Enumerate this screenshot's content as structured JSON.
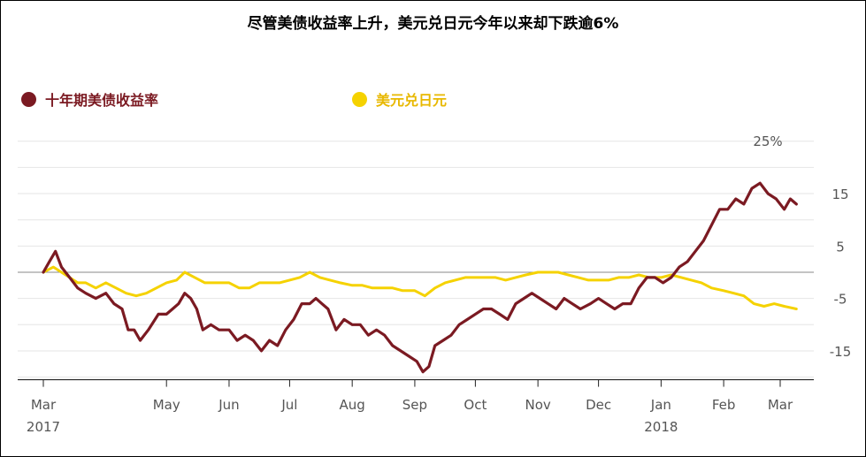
{
  "chart_data": {
    "type": "line",
    "title": "尽管美债收益率上升，美元兑日元今年以来却下跌逾6%",
    "unit_label": "25%",
    "ylim": [
      -20,
      25
    ],
    "y_ticks": [
      15,
      5,
      -5,
      -15
    ],
    "x_ticks": [
      {
        "label": "Mar",
        "year": "2017",
        "date": "2017-03-01"
      },
      {
        "label": "May",
        "year": "",
        "date": "2017-05-01"
      },
      {
        "label": "Jun",
        "year": "",
        "date": "2017-06-01"
      },
      {
        "label": "Jul",
        "year": "",
        "date": "2017-07-01"
      },
      {
        "label": "Aug",
        "year": "",
        "date": "2017-08-01"
      },
      {
        "label": "Sep",
        "year": "",
        "date": "2017-09-01"
      },
      {
        "label": "Oct",
        "year": "",
        "date": "2017-10-01"
      },
      {
        "label": "Nov",
        "year": "",
        "date": "2017-11-01"
      },
      {
        "label": "Dec",
        "year": "",
        "date": "2017-12-01"
      },
      {
        "label": "Jan",
        "year": "2018",
        "date": "2018-01-01"
      },
      {
        "label": "Feb",
        "year": "",
        "date": "2018-02-01"
      },
      {
        "label": "Mar",
        "year": "",
        "date": "2018-03-01"
      }
    ],
    "grid": true,
    "legend_position": "top-left",
    "series": [
      {
        "name": "十年期美债收益率",
        "color": "#7b1a22",
        "points": [
          [
            "2017-03-01",
            0
          ],
          [
            "2017-03-04",
            2
          ],
          [
            "2017-03-07",
            4
          ],
          [
            "2017-03-10",
            1
          ],
          [
            "2017-03-14",
            -1
          ],
          [
            "2017-03-18",
            -3
          ],
          [
            "2017-03-22",
            -4
          ],
          [
            "2017-03-27",
            -5
          ],
          [
            "2017-04-01",
            -4
          ],
          [
            "2017-04-05",
            -6
          ],
          [
            "2017-04-09",
            -7
          ],
          [
            "2017-04-12",
            -11
          ],
          [
            "2017-04-15",
            -11
          ],
          [
            "2017-04-18",
            -13
          ],
          [
            "2017-04-22",
            -11
          ],
          [
            "2017-04-27",
            -8
          ],
          [
            "2017-05-01",
            -8
          ],
          [
            "2017-05-04",
            -7
          ],
          [
            "2017-05-07",
            -6
          ],
          [
            "2017-05-10",
            -4
          ],
          [
            "2017-05-13",
            -5
          ],
          [
            "2017-05-16",
            -7
          ],
          [
            "2017-05-19",
            -11
          ],
          [
            "2017-05-23",
            -10
          ],
          [
            "2017-05-27",
            -11
          ],
          [
            "2017-06-01",
            -11
          ],
          [
            "2017-06-05",
            -13
          ],
          [
            "2017-06-09",
            -12
          ],
          [
            "2017-06-13",
            -13
          ],
          [
            "2017-06-17",
            -15
          ],
          [
            "2017-06-21",
            -13
          ],
          [
            "2017-06-25",
            -14
          ],
          [
            "2017-06-29",
            -11
          ],
          [
            "2017-07-03",
            -9
          ],
          [
            "2017-07-07",
            -6
          ],
          [
            "2017-07-11",
            -6
          ],
          [
            "2017-07-14",
            -5
          ],
          [
            "2017-07-17",
            -6
          ],
          [
            "2017-07-20",
            -7
          ],
          [
            "2017-07-24",
            -11
          ],
          [
            "2017-07-28",
            -9
          ],
          [
            "2017-08-01",
            -10
          ],
          [
            "2017-08-05",
            -10
          ],
          [
            "2017-08-09",
            -12
          ],
          [
            "2017-08-13",
            -11
          ],
          [
            "2017-08-17",
            -12
          ],
          [
            "2017-08-21",
            -14
          ],
          [
            "2017-08-25",
            -15
          ],
          [
            "2017-08-29",
            -16
          ],
          [
            "2017-09-02",
            -17
          ],
          [
            "2017-09-05",
            -19
          ],
          [
            "2017-09-08",
            -18
          ],
          [
            "2017-09-11",
            -14
          ],
          [
            "2017-09-15",
            -13
          ],
          [
            "2017-09-19",
            -12
          ],
          [
            "2017-09-23",
            -10
          ],
          [
            "2017-09-27",
            -9
          ],
          [
            "2017-10-01",
            -8
          ],
          [
            "2017-10-05",
            -7
          ],
          [
            "2017-10-09",
            -7
          ],
          [
            "2017-10-13",
            -8
          ],
          [
            "2017-10-17",
            -9
          ],
          [
            "2017-10-21",
            -6
          ],
          [
            "2017-10-25",
            -5
          ],
          [
            "2017-10-29",
            -4
          ],
          [
            "2017-11-02",
            -5
          ],
          [
            "2017-11-06",
            -6
          ],
          [
            "2017-11-10",
            -7
          ],
          [
            "2017-11-14",
            -5
          ],
          [
            "2017-11-18",
            -6
          ],
          [
            "2017-11-22",
            -7
          ],
          [
            "2017-11-27",
            -6
          ],
          [
            "2017-12-01",
            -5
          ],
          [
            "2017-12-05",
            -6
          ],
          [
            "2017-12-09",
            -7
          ],
          [
            "2017-12-13",
            -6
          ],
          [
            "2017-12-17",
            -6
          ],
          [
            "2017-12-21",
            -3
          ],
          [
            "2017-12-25",
            -1
          ],
          [
            "2017-12-29",
            -1
          ],
          [
            "2018-01-02",
            -2
          ],
          [
            "2018-01-06",
            -1
          ],
          [
            "2018-01-10",
            1
          ],
          [
            "2018-01-14",
            2
          ],
          [
            "2018-01-18",
            4
          ],
          [
            "2018-01-22",
            6
          ],
          [
            "2018-01-26",
            9
          ],
          [
            "2018-01-30",
            12
          ],
          [
            "2018-02-03",
            12
          ],
          [
            "2018-02-07",
            14
          ],
          [
            "2018-02-11",
            13
          ],
          [
            "2018-02-15",
            16
          ],
          [
            "2018-02-19",
            17
          ],
          [
            "2018-02-23",
            15
          ],
          [
            "2018-02-27",
            14
          ],
          [
            "2018-03-03",
            12
          ],
          [
            "2018-03-06",
            14
          ],
          [
            "2018-03-09",
            13
          ]
        ]
      },
      {
        "name": "美元兑日元",
        "color": "#f5d200",
        "points": [
          [
            "2017-03-01",
            0
          ],
          [
            "2017-03-06",
            1
          ],
          [
            "2017-03-10",
            0
          ],
          [
            "2017-03-14",
            -1
          ],
          [
            "2017-03-18",
            -2
          ],
          [
            "2017-03-22",
            -2
          ],
          [
            "2017-03-27",
            -3
          ],
          [
            "2017-04-01",
            -2
          ],
          [
            "2017-04-06",
            -3
          ],
          [
            "2017-04-11",
            -4
          ],
          [
            "2017-04-16",
            -4.5
          ],
          [
            "2017-04-21",
            -4
          ],
          [
            "2017-04-26",
            -3
          ],
          [
            "2017-05-01",
            -2
          ],
          [
            "2017-05-06",
            -1.5
          ],
          [
            "2017-05-10",
            0
          ],
          [
            "2017-05-15",
            -1
          ],
          [
            "2017-05-20",
            -2
          ],
          [
            "2017-05-25",
            -2
          ],
          [
            "2017-06-01",
            -2
          ],
          [
            "2017-06-06",
            -3
          ],
          [
            "2017-06-11",
            -3
          ],
          [
            "2017-06-16",
            -2
          ],
          [
            "2017-06-21",
            -2
          ],
          [
            "2017-06-26",
            -2
          ],
          [
            "2017-07-01",
            -1.5
          ],
          [
            "2017-07-06",
            -1
          ],
          [
            "2017-07-11",
            0
          ],
          [
            "2017-07-16",
            -1
          ],
          [
            "2017-07-21",
            -1.5
          ],
          [
            "2017-07-26",
            -2
          ],
          [
            "2017-08-01",
            -2.5
          ],
          [
            "2017-08-06",
            -2.5
          ],
          [
            "2017-08-11",
            -3
          ],
          [
            "2017-08-16",
            -3
          ],
          [
            "2017-08-21",
            -3
          ],
          [
            "2017-08-26",
            -3.5
          ],
          [
            "2017-09-01",
            -3.5
          ],
          [
            "2017-09-06",
            -4.5
          ],
          [
            "2017-09-11",
            -3
          ],
          [
            "2017-09-16",
            -2
          ],
          [
            "2017-09-21",
            -1.5
          ],
          [
            "2017-09-26",
            -1
          ],
          [
            "2017-10-01",
            -1
          ],
          [
            "2017-10-06",
            -1
          ],
          [
            "2017-10-11",
            -1
          ],
          [
            "2017-10-16",
            -1.5
          ],
          [
            "2017-10-21",
            -1
          ],
          [
            "2017-10-26",
            -0.5
          ],
          [
            "2017-11-01",
            0
          ],
          [
            "2017-11-06",
            0
          ],
          [
            "2017-11-11",
            0
          ],
          [
            "2017-11-16",
            -0.5
          ],
          [
            "2017-11-21",
            -1
          ],
          [
            "2017-11-26",
            -1.5
          ],
          [
            "2017-12-01",
            -1.5
          ],
          [
            "2017-12-06",
            -1.5
          ],
          [
            "2017-12-11",
            -1
          ],
          [
            "2017-12-16",
            -1
          ],
          [
            "2017-12-21",
            -0.5
          ],
          [
            "2017-12-26",
            -1
          ],
          [
            "2018-01-01",
            -1
          ],
          [
            "2018-01-06",
            -0.5
          ],
          [
            "2018-01-11",
            -1
          ],
          [
            "2018-01-16",
            -1.5
          ],
          [
            "2018-01-21",
            -2
          ],
          [
            "2018-01-26",
            -3
          ],
          [
            "2018-02-01",
            -3.5
          ],
          [
            "2018-02-06",
            -4
          ],
          [
            "2018-02-11",
            -4.5
          ],
          [
            "2018-02-16",
            -6
          ],
          [
            "2018-02-21",
            -6.5
          ],
          [
            "2018-02-26",
            -6
          ],
          [
            "2018-03-03",
            -6.5
          ],
          [
            "2018-03-09",
            -7
          ]
        ]
      }
    ]
  }
}
